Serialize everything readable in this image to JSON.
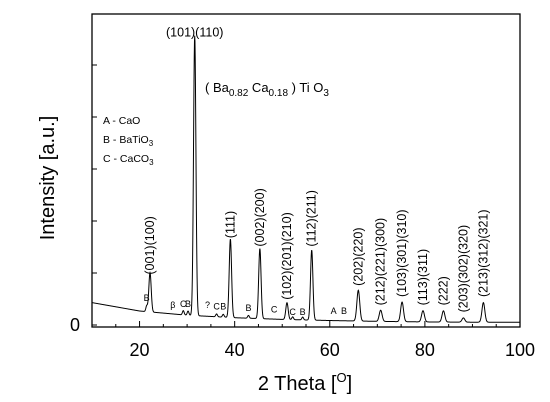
{
  "chart_data": {
    "type": "line",
    "xlabel": "2 Theta [°]",
    "xlabel_main": "2 Theta [",
    "xlabel_sup": "O",
    "xlabel_close": "]",
    "ylabel": "Intensity [a.u.]",
    "xlim": [
      10,
      100
    ],
    "ylim": [
      0,
      100
    ],
    "x_ticks": [
      20,
      40,
      60,
      80,
      100
    ],
    "y_ticks": [
      0
    ],
    "grid": false,
    "formula": {
      "open": "( Ba",
      "sub1": "0.82",
      "mid": " Ca",
      "sub2": "0.18",
      "close": " ) Ti O",
      "sub3": "3"
    },
    "legend": [
      {
        "key": "A",
        "text": "A - CaO",
        "main": "A - CaO",
        "sub": ""
      },
      {
        "key": "B",
        "text": "B - BaTiO3",
        "main": "B - BaTiO",
        "sub": "3"
      },
      {
        "key": "C",
        "text": "C - CaCO3",
        "main": "C - CaCO",
        "sub": "3"
      }
    ],
    "baseline": {
      "x": [
        10,
        20,
        30,
        40,
        50,
        60,
        70,
        80,
        90,
        100
      ],
      "y": [
        8,
        5,
        3.5,
        2.6,
        2,
        1.6,
        1.3,
        1.1,
        1,
        1
      ]
    },
    "peaks": [
      {
        "x": 22.2,
        "height": 14,
        "width": 0.25,
        "label": "(001)(100)",
        "label_y": 18
      },
      {
        "x": 31.6,
        "height": 100,
        "width": 0.25,
        "label": "(101)(110)",
        "label_y": 103
      },
      {
        "x": 39.1,
        "height": 28,
        "width": 0.25,
        "label": "(111)",
        "label_y": 31
      },
      {
        "x": 45.3,
        "height": 25,
        "width": 0.25,
        "label": "(002)(200)",
        "label_y": 28
      },
      {
        "x": 51.0,
        "height": 6,
        "width": 0.25,
        "label": "(102)(201)(210)",
        "label_y": 9
      },
      {
        "x": 56.2,
        "height": 25,
        "width": 0.25,
        "label": "(112)(211)",
        "label_y": 28
      },
      {
        "x": 66.0,
        "height": 11,
        "width": 0.3,
        "label": "(202)(220)",
        "label_y": 14
      },
      {
        "x": 70.7,
        "height": 4,
        "width": 0.3,
        "label": "(212)(221)(300)",
        "label_y": 7
      },
      {
        "x": 75.2,
        "height": 7,
        "width": 0.3,
        "label": "(103)(301)(310)",
        "label_y": 10
      },
      {
        "x": 79.6,
        "height": 4,
        "width": 0.3,
        "label": "(113)(311)",
        "label_y": 7
      },
      {
        "x": 83.9,
        "height": 4,
        "width": 0.3,
        "label": "(222)",
        "label_y": 7
      },
      {
        "x": 88.1,
        "height": 1.5,
        "width": 0.3,
        "label": "(203)(302)(320)",
        "label_y": 4.5
      },
      {
        "x": 92.3,
        "height": 7,
        "width": 0.3,
        "label": "(213)(312)(321)",
        "label_y": 10
      }
    ],
    "phase_marks": [
      {
        "x": 21.5,
        "label": "B",
        "label_y": 8.5,
        "small_peak": 2
      },
      {
        "x": 27.0,
        "label": "β",
        "label_y": 6,
        "small_peak": 0
      },
      {
        "x": 29.2,
        "label": "C",
        "label_y": 6.5,
        "small_peak": 1.5
      },
      {
        "x": 30.2,
        "label": "B",
        "label_y": 6.5,
        "small_peak": 1.5
      },
      {
        "x": 34.3,
        "label": "?",
        "label_y": 6,
        "small_peak": 0
      },
      {
        "x": 36.2,
        "label": "C",
        "label_y": 5.5,
        "small_peak": 1
      },
      {
        "x": 37.6,
        "label": "B",
        "label_y": 5.5,
        "small_peak": 1
      },
      {
        "x": 42.9,
        "label": "B",
        "label_y": 5,
        "small_peak": 1
      },
      {
        "x": 48.3,
        "label": "C",
        "label_y": 4.5,
        "small_peak": 0
      },
      {
        "x": 52.2,
        "label": "C",
        "label_y": 3.5,
        "small_peak": 1
      },
      {
        "x": 54.3,
        "label": "B",
        "label_y": 3.5,
        "small_peak": 1
      },
      {
        "x": 60.8,
        "label": "A",
        "label_y": 4,
        "small_peak": 0
      },
      {
        "x": 63.0,
        "label": "B",
        "label_y": 4,
        "small_peak": 0
      }
    ]
  }
}
